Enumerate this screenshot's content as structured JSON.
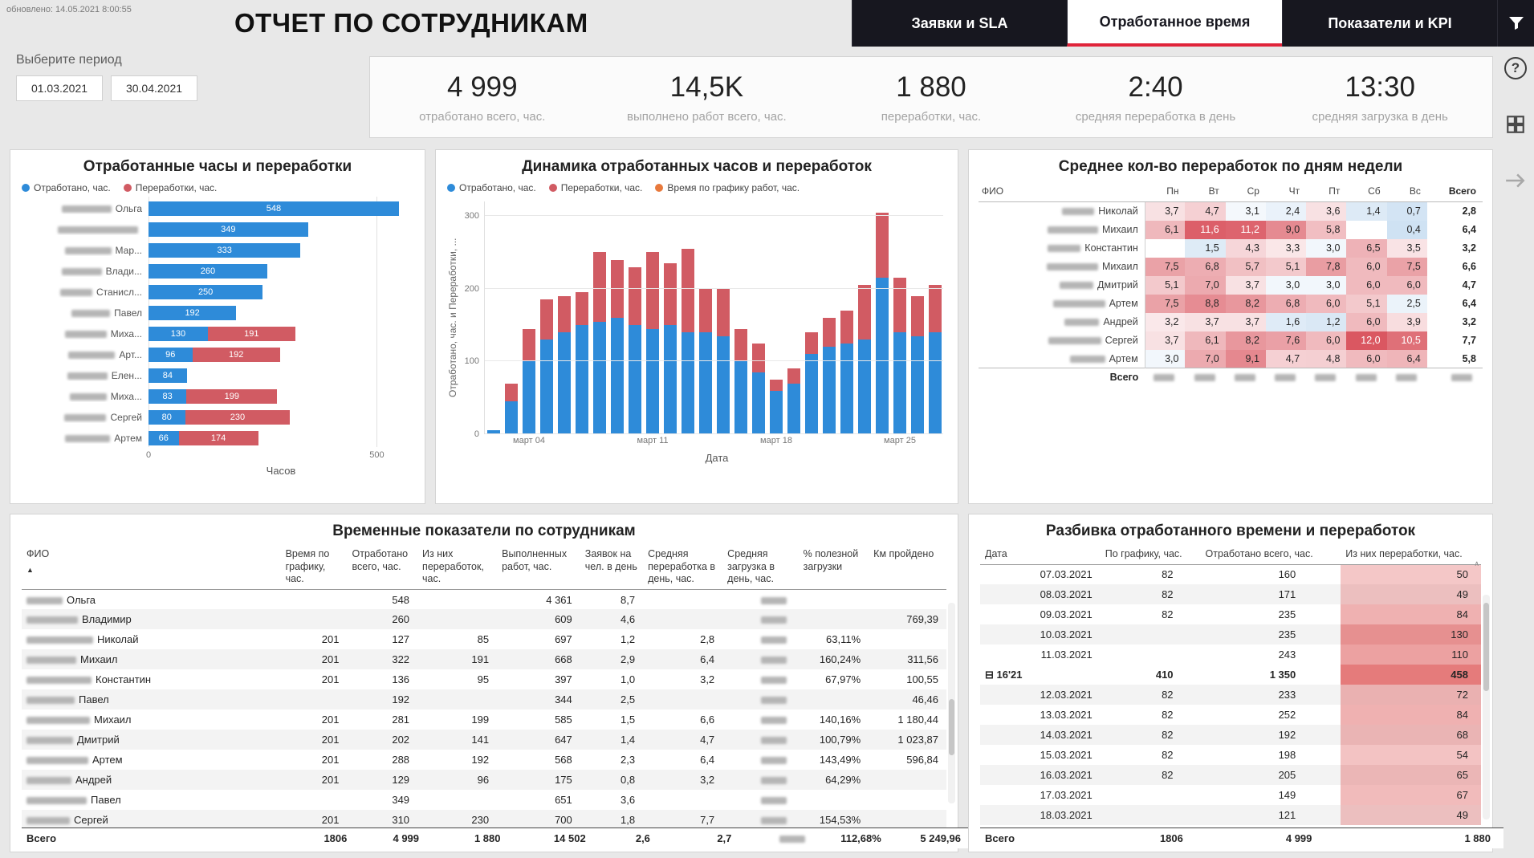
{
  "colors": {
    "blue": "#2E8BD9",
    "red": "#D15B63",
    "orange": "#E8793C",
    "accent_red": "#E0243A",
    "tab_bg": "#17171F",
    "heat_red": "214,69,80",
    "heat_blue": "157,195,230",
    "breakdown_red": "222,90,90"
  },
  "header": {
    "updated": "обновлено: 14.05.2021 8:00:55",
    "title": "ОТЧЕТ ПО СОТРУДНИКАМ",
    "tabs": [
      {
        "label": "Заявки и SLA",
        "active": false
      },
      {
        "label": "Отработанное время",
        "active": true
      },
      {
        "label": "Показатели и KPI",
        "active": false
      }
    ]
  },
  "right_rail": {
    "help": "?"
  },
  "period": {
    "label": "Выберите период",
    "start": "01.03.2021",
    "end": "30.04.2021"
  },
  "kpis": [
    {
      "value": "4 999",
      "label": "отработано всего, час."
    },
    {
      "value": "14,5K",
      "label": "выполнено работ всего, час."
    },
    {
      "value": "1 880",
      "label": "переработки, час."
    },
    {
      "value": "2:40",
      "label": "средняя переработка в день"
    },
    {
      "value": "13:30",
      "label": "средняя загрузка в день"
    }
  ],
  "chart_data": [
    {
      "type": "bar",
      "orientation": "horizontal",
      "title": "Отработанные часы и переработки",
      "legend": [
        "Отработано, час.",
        "Переработки, час."
      ],
      "xlabel": "Часов",
      "xlim": [
        0,
        580
      ],
      "xticks": [
        0,
        500
      ],
      "rows": [
        {
          "name": "Ольга",
          "blur": 62,
          "worked": 548,
          "overtime": 0
        },
        {
          "name": "",
          "blur": 100,
          "worked": 349,
          "overtime": 0
        },
        {
          "name": "Мар...",
          "blur": 58,
          "worked": 333,
          "overtime": 0
        },
        {
          "name": "Влади...",
          "blur": 50,
          "worked": 260,
          "overtime": 0
        },
        {
          "name": "Станисл...",
          "blur": 40,
          "worked": 250,
          "overtime": 0
        },
        {
          "name": "Павел",
          "blur": 48,
          "worked": 192,
          "overtime": 0
        },
        {
          "name": "Миха...",
          "blur": 52,
          "worked": 130,
          "overtime": 191
        },
        {
          "name": "Арт...",
          "blur": 58,
          "worked": 96,
          "overtime": 192
        },
        {
          "name": "Елен...",
          "blur": 50,
          "worked": 84,
          "overtime": 0
        },
        {
          "name": "Миха...",
          "blur": 46,
          "worked": 83,
          "overtime": 199
        },
        {
          "name": "Сергей",
          "blur": 52,
          "worked": 80,
          "overtime": 230
        },
        {
          "name": "Артем",
          "blur": 56,
          "worked": 66,
          "overtime": 174
        }
      ]
    },
    {
      "type": "bar",
      "stacked": true,
      "title": "Динамика отработанных часов и переработок",
      "legend": [
        "Отработано, час.",
        "Переработки, час.",
        "Время по графику работ, час."
      ],
      "ylabel": "Отработано, час. и Переработки, ...",
      "xlabel": "Дата",
      "ylim": [
        0,
        320
      ],
      "yticks": [
        0,
        100,
        200,
        300
      ],
      "xtick_labels": [
        "март 04",
        "март 11",
        "март 18",
        "март 25"
      ],
      "xtick_indices": [
        2,
        9,
        16,
        23
      ],
      "series": [
        {
          "name": "Отработано, час.",
          "values": [
            5,
            45,
            100,
            130,
            140,
            150,
            155,
            160,
            150,
            145,
            150,
            140,
            140,
            135,
            100,
            85,
            60,
            70,
            110,
            120,
            125,
            130,
            215,
            140,
            135,
            140
          ]
        },
        {
          "name": "Переработки, час.",
          "values": [
            0,
            25,
            45,
            55,
            50,
            45,
            95,
            80,
            80,
            105,
            85,
            115,
            60,
            65,
            45,
            40,
            15,
            20,
            30,
            40,
            45,
            75,
            90,
            75,
            55,
            65
          ]
        }
      ]
    },
    {
      "type": "heatmap",
      "title": "Среднее кол-во переработок по дням недели",
      "columns": [
        "ФИО",
        "Пн",
        "Вт",
        "Ср",
        "Чт",
        "Пт",
        "Сб",
        "Вс",
        "Всего"
      ],
      "rows": [
        {
          "name": "Николай",
          "values": [
            "3,7",
            "4,7",
            "3,1",
            "2,4",
            "3,6",
            "1,4",
            "0,7"
          ],
          "total": "2,8"
        },
        {
          "name": "Михаил",
          "values": [
            "6,1",
            "11,6",
            "11,2",
            "9,0",
            "5,8",
            "",
            "0,4"
          ],
          "total": "6,4"
        },
        {
          "name": "Константин",
          "values": [
            "",
            "1,5",
            "4,3",
            "3,3",
            "3,0",
            "6,5",
            "3,5"
          ],
          "total": "3,2"
        },
        {
          "name": "Михаил",
          "values": [
            "7,5",
            "6,8",
            "5,7",
            "5,1",
            "7,8",
            "6,0",
            "7,5"
          ],
          "total": "6,6"
        },
        {
          "name": "Дмитрий",
          "values": [
            "5,1",
            "7,0",
            "3,7",
            "3,0",
            "3,0",
            "6,0",
            "6,0"
          ],
          "total": "4,7"
        },
        {
          "name": "Артем",
          "values": [
            "7,5",
            "8,8",
            "8,2",
            "6,8",
            "6,0",
            "5,1",
            "2,5"
          ],
          "total": "6,4"
        },
        {
          "name": "Андрей",
          "values": [
            "3,2",
            "3,7",
            "3,7",
            "1,6",
            "1,2",
            "6,0",
            "3,9"
          ],
          "total": "3,2"
        },
        {
          "name": "Сергей",
          "values": [
            "3,7",
            "6,1",
            "8,2",
            "7,6",
            "6,0",
            "12,0",
            "10,5"
          ],
          "total": "7,7"
        },
        {
          "name": "Артем",
          "values": [
            "3,0",
            "7,0",
            "9,1",
            "4,7",
            "4,8",
            "6,0",
            "6,4"
          ],
          "total": "5,8"
        }
      ],
      "total_label": "Всего"
    }
  ],
  "time_table": {
    "title": "Временные показатели по сотрудникам",
    "columns": [
      "ФИО",
      "Время по графику, час.",
      "Отработано всего, час.",
      "Из них переработок, час.",
      "Выполненных работ, час.",
      "Заявок на чел. в день",
      "Средняя переработка в день, час.",
      "Средняя загрузка в день, час.",
      "% полезной загрузки",
      "Км пройдено"
    ],
    "sort_icon": "▲",
    "rows": [
      {
        "name": "Ольга",
        "cells": [
          "",
          "548",
          "",
          "4 361",
          "8,7",
          "",
          "~",
          "",
          ""
        ]
      },
      {
        "name": "Владимир",
        "cells": [
          "",
          "260",
          "",
          "609",
          "4,6",
          "",
          "~",
          "",
          "769,39"
        ]
      },
      {
        "name": "Николай",
        "cells": [
          "201",
          "127",
          "85",
          "697",
          "1,2",
          "2,8",
          "~",
          "63,11%",
          ""
        ]
      },
      {
        "name": "Михаил",
        "cells": [
          "201",
          "322",
          "191",
          "668",
          "2,9",
          "6,4",
          "~",
          "160,24%",
          "311,56"
        ]
      },
      {
        "name": "Константин",
        "cells": [
          "201",
          "136",
          "95",
          "397",
          "1,0",
          "3,2",
          "~",
          "67,97%",
          "100,55"
        ]
      },
      {
        "name": "Павел",
        "cells": [
          "",
          "192",
          "",
          "344",
          "2,5",
          "",
          "~",
          "",
          "46,46"
        ]
      },
      {
        "name": "Михаил",
        "cells": [
          "201",
          "281",
          "199",
          "585",
          "1,5",
          "6,6",
          "~",
          "140,16%",
          "1 180,44"
        ]
      },
      {
        "name": "Дмитрий",
        "cells": [
          "201",
          "202",
          "141",
          "647",
          "1,4",
          "4,7",
          "~",
          "100,79%",
          "1 023,87"
        ]
      },
      {
        "name": "Артем",
        "cells": [
          "201",
          "288",
          "192",
          "568",
          "2,3",
          "6,4",
          "~",
          "143,49%",
          "596,84"
        ]
      },
      {
        "name": "Андрей",
        "cells": [
          "201",
          "129",
          "96",
          "175",
          "0,8",
          "3,2",
          "~",
          "64,29%",
          ""
        ]
      },
      {
        "name": "Павел",
        "cells": [
          "",
          "349",
          "",
          "651",
          "3,6",
          "",
          "~",
          "",
          ""
        ]
      },
      {
        "name": "Сергей",
        "cells": [
          "201",
          "310",
          "230",
          "700",
          "1,8",
          "7,7",
          "~",
          "154,53%",
          ""
        ]
      }
    ],
    "total": {
      "label": "Всего",
      "cells": [
        "1806",
        "4 999",
        "1 880",
        "14 502",
        "2,6",
        "2,7",
        "~",
        "112,68%",
        "5 249,96"
      ]
    }
  },
  "breakdown_table": {
    "title": "Разбивка отработанного времени и переработок",
    "columns": [
      "Дата",
      "По графику, час.",
      "Отработано всего, час.",
      "Из них переработки, час."
    ],
    "collapse_icon": "⊟",
    "scroll_up_icon": "∧",
    "rows": [
      {
        "date": "07.03.2021",
        "plan": "82",
        "worked": "160",
        "overtime": "50",
        "group": false
      },
      {
        "date": "08.03.2021",
        "plan": "82",
        "worked": "171",
        "overtime": "49",
        "group": false
      },
      {
        "date": "09.03.2021",
        "plan": "82",
        "worked": "235",
        "overtime": "84",
        "group": false
      },
      {
        "date": "10.03.2021",
        "plan": "",
        "worked": "235",
        "overtime": "130",
        "group": false
      },
      {
        "date": "11.03.2021",
        "plan": "",
        "worked": "243",
        "overtime": "110",
        "group": false
      },
      {
        "date": "16'21",
        "plan": "410",
        "worked": "1 350",
        "overtime": "458",
        "group": true
      },
      {
        "date": "12.03.2021",
        "plan": "82",
        "worked": "233",
        "overtime": "72",
        "group": false
      },
      {
        "date": "13.03.2021",
        "plan": "82",
        "worked": "252",
        "overtime": "84",
        "group": false
      },
      {
        "date": "14.03.2021",
        "plan": "82",
        "worked": "192",
        "overtime": "68",
        "group": false
      },
      {
        "date": "15.03.2021",
        "plan": "82",
        "worked": "198",
        "overtime": "54",
        "group": false
      },
      {
        "date": "16.03.2021",
        "plan": "82",
        "worked": "205",
        "overtime": "65",
        "group": false
      },
      {
        "date": "17.03.2021",
        "plan": "",
        "worked": "149",
        "overtime": "67",
        "group": false
      },
      {
        "date": "18.03.2021",
        "plan": "",
        "worked": "121",
        "overtime": "49",
        "group": false
      }
    ],
    "total": {
      "label": "Всего",
      "plan": "1806",
      "worked": "4 999",
      "overtime": "1 880"
    }
  }
}
